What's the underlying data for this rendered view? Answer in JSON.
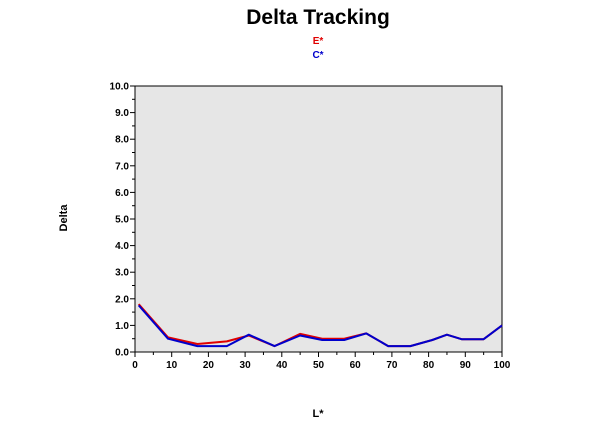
{
  "chart_data": {
    "type": "line",
    "title": "Delta Tracking",
    "xlabel": "L*",
    "ylabel": "Delta",
    "xlim": [
      0,
      100
    ],
    "ylim": [
      0,
      10
    ],
    "x_ticks": [
      "0",
      "10",
      "20",
      "30",
      "40",
      "50",
      "60",
      "70",
      "80",
      "90",
      "100"
    ],
    "y_ticks": [
      "0.0",
      "1.0",
      "2.0",
      "3.0",
      "4.0",
      "5.0",
      "6.0",
      "7.0",
      "8.0",
      "9.0",
      "10.0"
    ],
    "grid": false,
    "legend_position": "top-center",
    "background_color": "#e6e6e6",
    "series": [
      {
        "name": "E*",
        "color": "#e00000",
        "x": [
          1,
          9,
          17,
          25,
          31,
          38,
          45,
          51,
          57,
          63,
          69,
          75,
          81,
          85,
          89,
          95,
          100
        ],
        "values": [
          1.8,
          0.55,
          0.3,
          0.4,
          0.62,
          0.22,
          0.68,
          0.5,
          0.5,
          0.7,
          0.22,
          0.22,
          0.45,
          0.65,
          0.48,
          0.48,
          1.0
        ]
      },
      {
        "name": "C*",
        "color": "#0000cc",
        "x": [
          1,
          9,
          17,
          25,
          31,
          38,
          45,
          51,
          57,
          63,
          69,
          75,
          81,
          85,
          89,
          95,
          100
        ],
        "values": [
          1.75,
          0.5,
          0.22,
          0.22,
          0.65,
          0.22,
          0.62,
          0.45,
          0.45,
          0.7,
          0.22,
          0.22,
          0.45,
          0.65,
          0.48,
          0.48,
          1.0
        ]
      }
    ]
  }
}
